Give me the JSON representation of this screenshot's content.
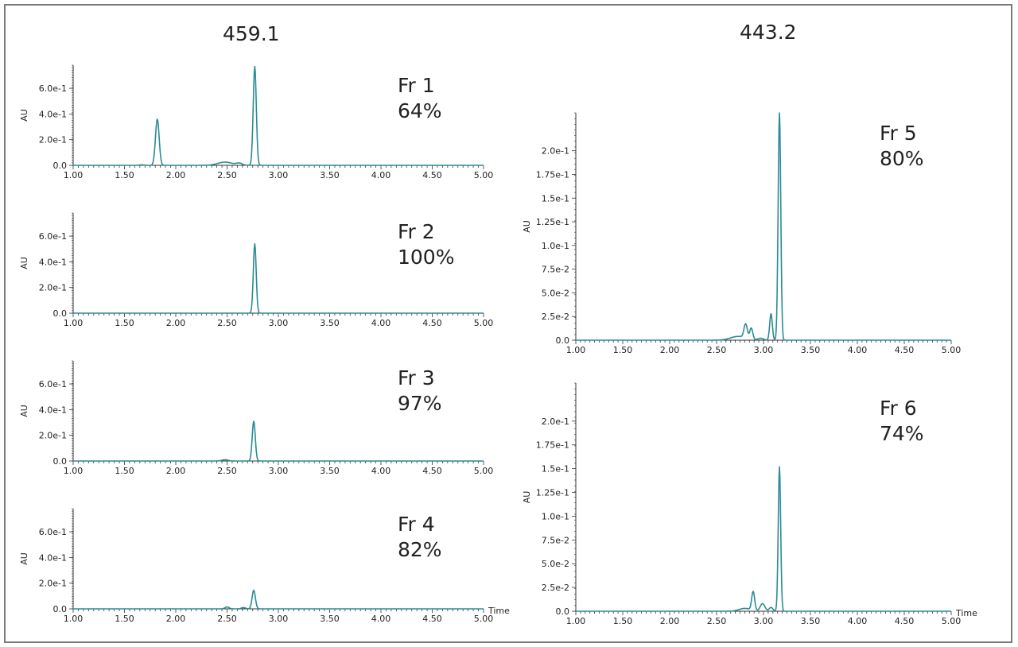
{
  "columns": [
    {
      "title": "459.1"
    },
    {
      "title": "443.2"
    }
  ],
  "colors": {
    "trace": "#2a8c96",
    "axis": "#333333"
  },
  "chart_data": [
    {
      "type": "line",
      "column": 0,
      "fraction": "Fr 1",
      "purity": "64%",
      "xlabel": "",
      "ylabel": "AU",
      "xlim": [
        1.0,
        5.0
      ],
      "ylim": [
        0,
        0.78
      ],
      "xticks": [
        "1.00",
        "1.50",
        "2.00",
        "2.50",
        "3.00",
        "3.50",
        "4.00",
        "4.50",
        "5.00"
      ],
      "yticks": [
        {
          "v": 0.0,
          "t": "0.0"
        },
        {
          "v": 0.2,
          "t": "2.0e-1"
        },
        {
          "v": 0.4,
          "t": "4.0e-1"
        },
        {
          "v": 0.6,
          "t": "6.0e-1"
        }
      ],
      "peaks": [
        [
          1.82,
          0.36,
          0.018
        ],
        [
          1.67,
          0.004,
          0.02
        ],
        [
          2.48,
          0.025,
          0.07
        ],
        [
          2.62,
          0.015,
          0.03
        ],
        [
          2.77,
          0.77,
          0.015
        ]
      ]
    },
    {
      "type": "line",
      "column": 0,
      "fraction": "Fr 2",
      "purity": "100%",
      "xlabel": "",
      "ylabel": "AU",
      "xlim": [
        1.0,
        5.0
      ],
      "ylim": [
        0,
        0.78
      ],
      "xticks": [
        "1.00",
        "1.50",
        "2.00",
        "2.50",
        "3.00",
        "3.50",
        "4.00",
        "4.50",
        "5.00"
      ],
      "yticks": [
        {
          "v": 0.0,
          "t": "0.0"
        },
        {
          "v": 0.2,
          "t": "2.0e-1"
        },
        {
          "v": 0.4,
          "t": "4.0e-1"
        },
        {
          "v": 0.6,
          "t": "6.0e-1"
        }
      ],
      "peaks": [
        [
          2.77,
          0.54,
          0.014
        ]
      ]
    },
    {
      "type": "line",
      "column": 0,
      "fraction": "Fr 3",
      "purity": "97%",
      "xlabel": "",
      "ylabel": "AU",
      "xlim": [
        1.0,
        5.0
      ],
      "ylim": [
        0,
        0.78
      ],
      "xticks": [
        "1.00",
        "1.50",
        "2.00",
        "2.50",
        "3.00",
        "3.50",
        "4.00",
        "4.50",
        "5.00"
      ],
      "yticks": [
        {
          "v": 0.0,
          "t": "0.0"
        },
        {
          "v": 0.2,
          "t": "2.0e-1"
        },
        {
          "v": 0.4,
          "t": "4.0e-1"
        },
        {
          "v": 0.6,
          "t": "6.0e-1"
        }
      ],
      "peaks": [
        [
          2.48,
          0.01,
          0.03
        ],
        [
          2.76,
          0.31,
          0.015
        ]
      ]
    },
    {
      "type": "line",
      "column": 0,
      "fraction": "Fr 4",
      "purity": "82%",
      "xlabel": "Time",
      "ylabel": "AU",
      "xlim": [
        1.0,
        5.0
      ],
      "ylim": [
        0,
        0.78
      ],
      "xticks": [
        "1.00",
        "1.50",
        "2.00",
        "2.50",
        "3.00",
        "3.50",
        "4.00",
        "4.50",
        "5.00"
      ],
      "yticks": [
        {
          "v": 0.0,
          "t": "0.0"
        },
        {
          "v": 0.2,
          "t": "2.0e-1"
        },
        {
          "v": 0.4,
          "t": "4.0e-1"
        },
        {
          "v": 0.6,
          "t": "6.0e-1"
        }
      ],
      "peaks": [
        [
          2.5,
          0.015,
          0.02
        ],
        [
          2.66,
          0.01,
          0.02
        ],
        [
          2.76,
          0.145,
          0.016
        ]
      ]
    },
    {
      "type": "line",
      "column": 1,
      "fraction": "Fr 5",
      "purity": "80%",
      "xlabel": "",
      "ylabel": "AU",
      "xlim": [
        1.0,
        5.0
      ],
      "ylim": [
        0,
        0.24
      ],
      "xticks": [
        "1.00",
        "1.50",
        "2.00",
        "2.50",
        "3.00",
        "3.50",
        "4.00",
        "4.50",
        "5.00"
      ],
      "yticks": [
        {
          "v": 0.0,
          "t": "0.0"
        },
        {
          "v": 0.025,
          "t": "2.5e-2"
        },
        {
          "v": 0.05,
          "t": "5.0e-2"
        },
        {
          "v": 0.075,
          "t": "7.5e-2"
        },
        {
          "v": 0.1,
          "t": "1.0e-1"
        },
        {
          "v": 0.125,
          "t": "1.25e-1"
        },
        {
          "v": 0.15,
          "t": "1.5e-1"
        },
        {
          "v": 0.175,
          "t": "1.75e-1"
        },
        {
          "v": 0.2,
          "t": "2.0e-1"
        }
      ],
      "peaks": [
        [
          2.73,
          0.004,
          0.08
        ],
        [
          2.81,
          0.015,
          0.018
        ],
        [
          2.87,
          0.012,
          0.016
        ],
        [
          2.97,
          0.002,
          0.03
        ],
        [
          3.08,
          0.028,
          0.014
        ],
        [
          3.17,
          0.24,
          0.014
        ]
      ]
    },
    {
      "type": "line",
      "column": 1,
      "fraction": "Fr 6",
      "purity": "74%",
      "xlabel": "Time",
      "ylabel": "AU",
      "xlim": [
        1.0,
        5.0
      ],
      "ylim": [
        0,
        0.24
      ],
      "xticks": [
        "1.00",
        "1.50",
        "2.00",
        "2.50",
        "3.00",
        "3.50",
        "4.00",
        "4.50",
        "5.00"
      ],
      "yticks": [
        {
          "v": 0.0,
          "t": "0.0"
        },
        {
          "v": 0.025,
          "t": "2.5e-2"
        },
        {
          "v": 0.05,
          "t": "5.0e-2"
        },
        {
          "v": 0.075,
          "t": "7.5e-2"
        },
        {
          "v": 0.1,
          "t": "1.0e-1"
        },
        {
          "v": 0.125,
          "t": "1.25e-1"
        },
        {
          "v": 0.15,
          "t": "1.5e-1"
        },
        {
          "v": 0.175,
          "t": "1.75e-1"
        },
        {
          "v": 0.2,
          "t": "2.0e-1"
        }
      ],
      "peaks": [
        [
          2.8,
          0.003,
          0.06
        ],
        [
          2.89,
          0.02,
          0.016
        ],
        [
          2.99,
          0.008,
          0.025
        ],
        [
          3.08,
          0.004,
          0.02
        ],
        [
          3.17,
          0.152,
          0.013
        ]
      ]
    }
  ]
}
